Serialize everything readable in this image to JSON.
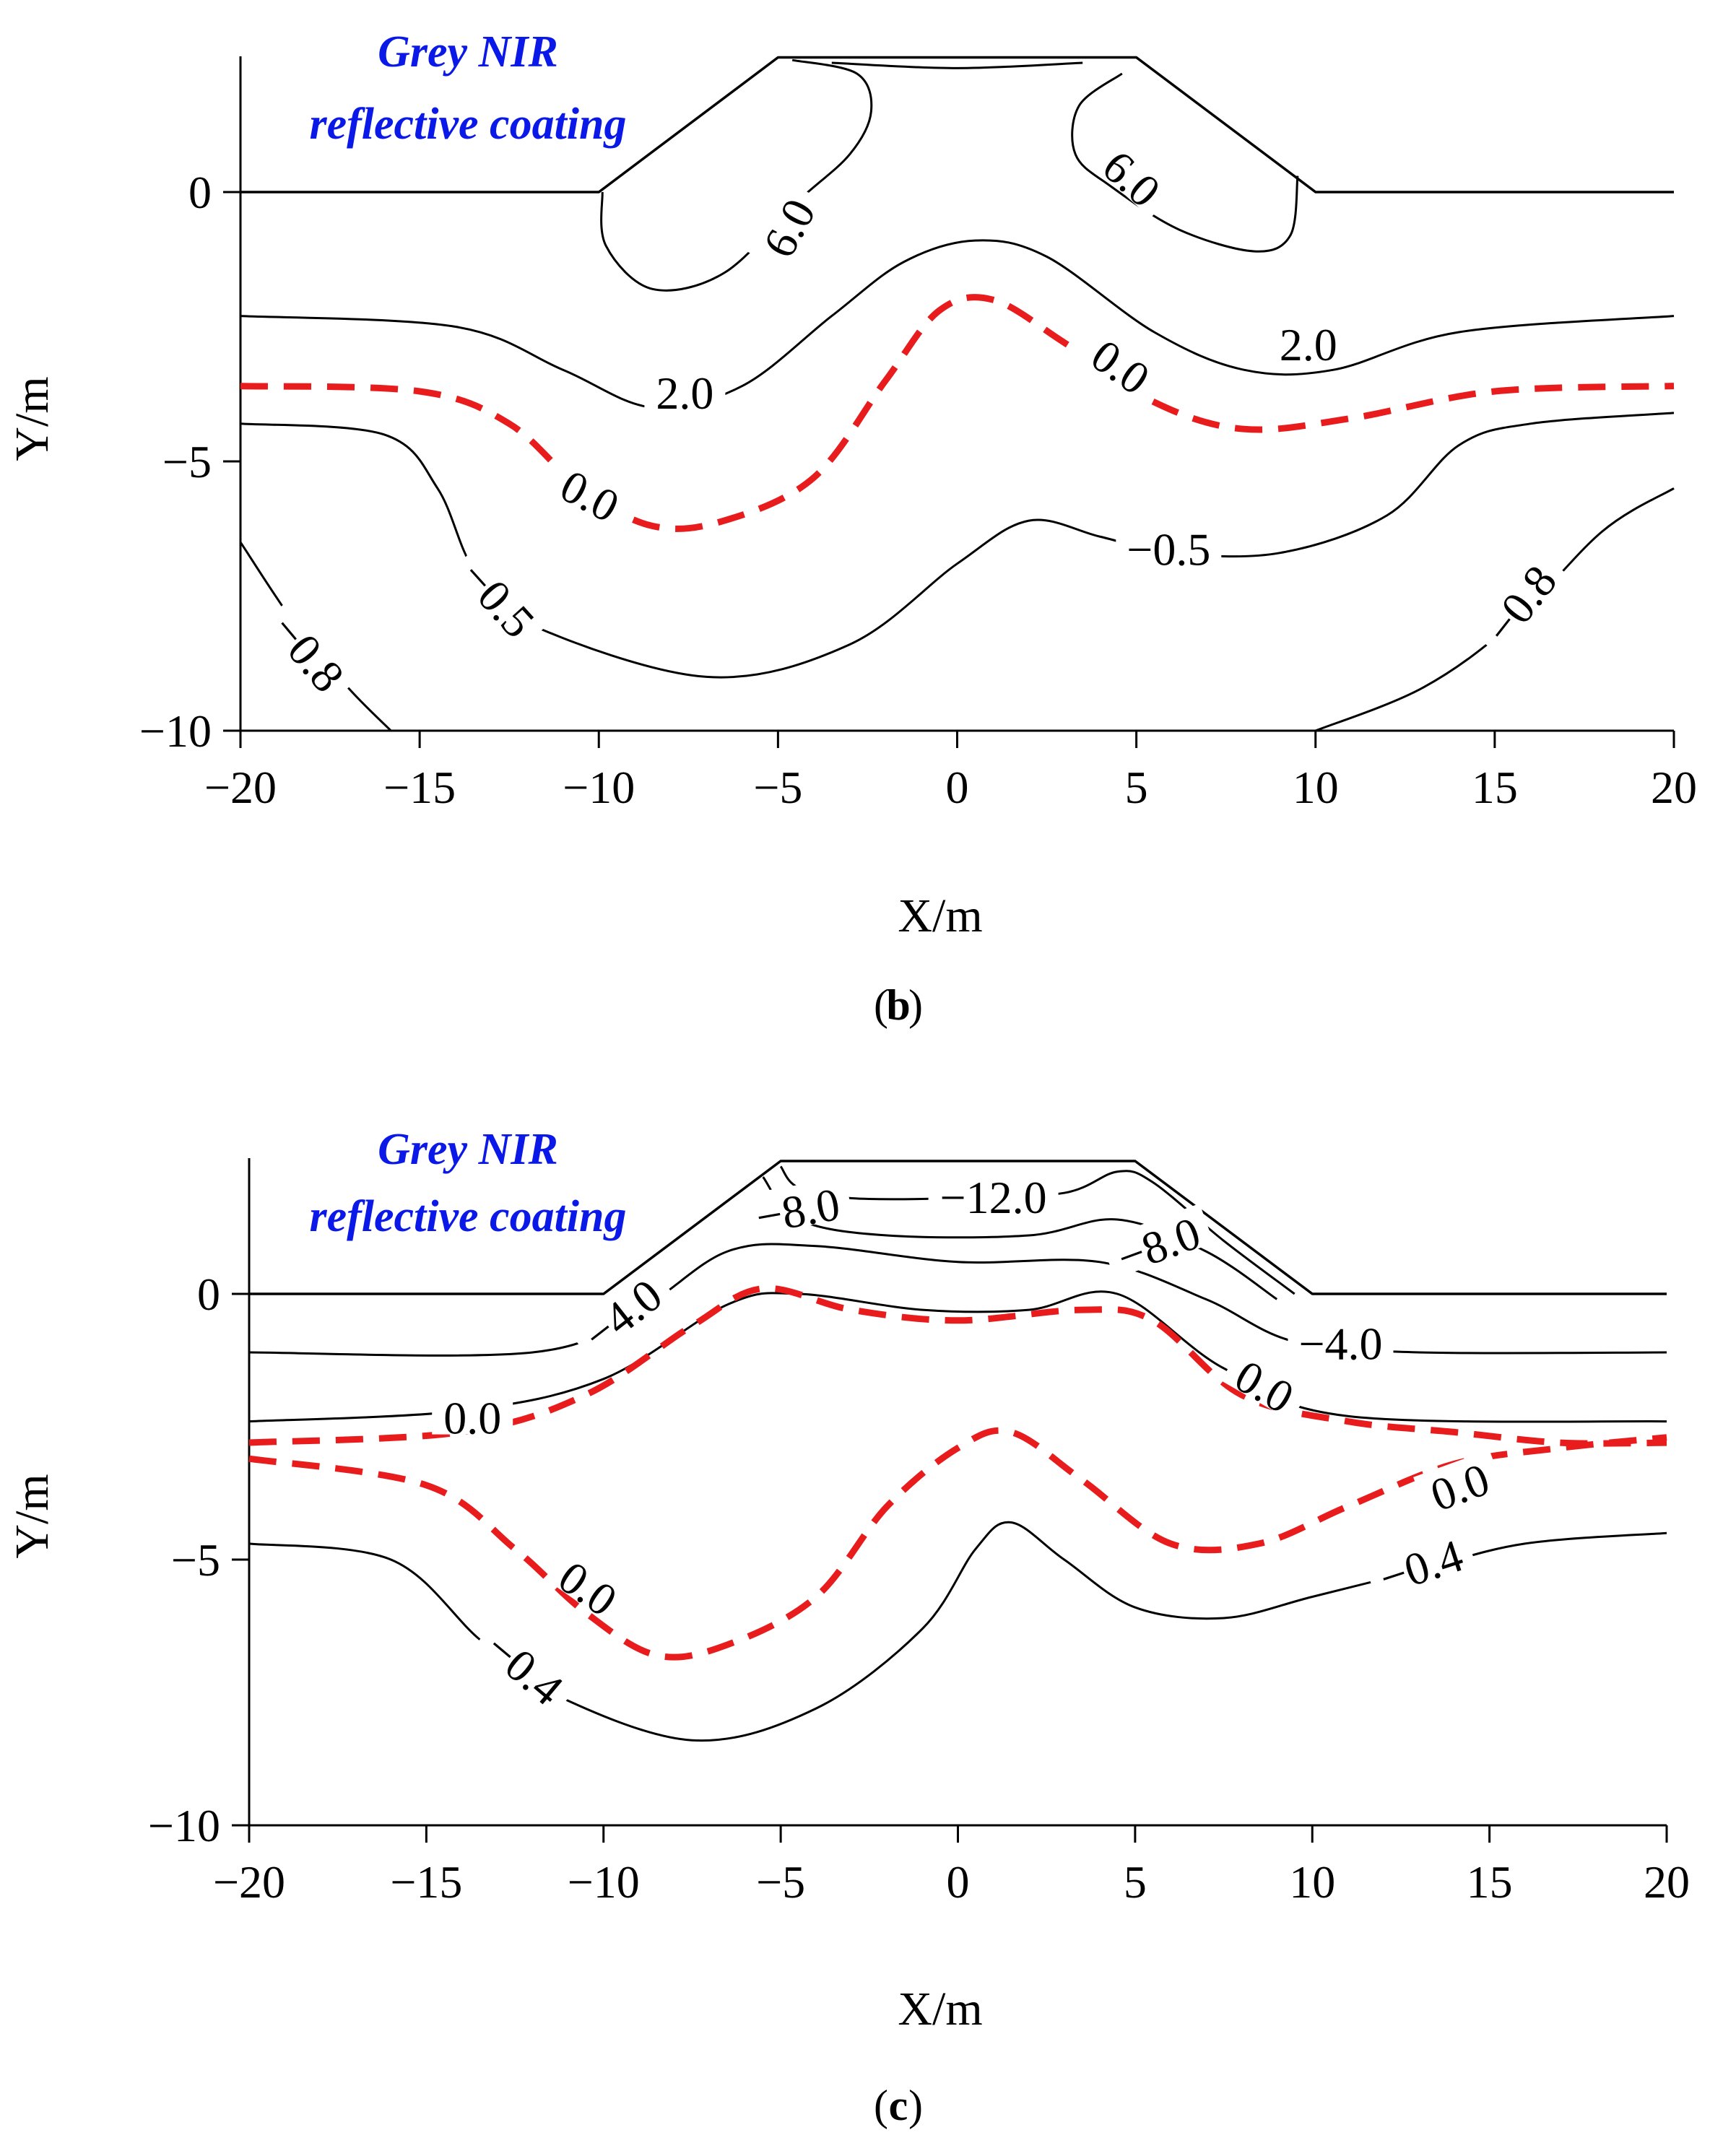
{
  "chart_data": [
    {
      "type": "contour",
      "panel_label": "b",
      "title": "",
      "annotation": [
        "Grey NIR",
        "reflective coating"
      ],
      "xlabel": "X/m",
      "ylabel": "Y/m",
      "xlim": [
        -20,
        20
      ],
      "ylim": [
        -10,
        2.6
      ],
      "xticks": [
        "−20",
        "−15",
        "−10",
        "−5",
        "0",
        "5",
        "10",
        "15",
        "20"
      ],
      "yticks": [
        "0",
        "−5",
        "−10"
      ],
      "embankment": [
        [
          -20,
          0
        ],
        [
          -10,
          0
        ],
        [
          -5,
          2.5
        ],
        [
          5,
          2.5
        ],
        [
          10,
          0
        ],
        [
          20,
          0
        ]
      ],
      "contours": [
        {
          "level": "6.0",
          "style": "solid",
          "label_at": [
            -5,
            -0.8
          ],
          "points": [
            [
              -9.9,
              0
            ],
            [
              -9.8,
              -1
            ],
            [
              -8.5,
              -1.8
            ],
            [
              -6.5,
              -1.5
            ],
            [
              -4.5,
              -0.2
            ],
            [
              -3.0,
              0.7
            ],
            [
              -2.4,
              1.5
            ],
            [
              -2.8,
              2.2
            ],
            [
              -4.6,
              2.45
            ]
          ]
        },
        {
          "level": "6.0",
          "style": "solid",
          "label_at": [
            4.8,
            0.2
          ],
          "points": [
            [
              9.5,
              0.3
            ],
            [
              9.3,
              -0.8
            ],
            [
              8.3,
              -1.1
            ],
            [
              6.2,
              -0.7
            ],
            [
              4.3,
              0.1
            ],
            [
              3.3,
              0.7
            ],
            [
              3.4,
              1.6
            ],
            [
              4.6,
              2.2
            ]
          ]
        },
        {
          "level": "6.0",
          "style": "solid",
          "label_at": null,
          "points": [
            [
              -3.5,
              2.4
            ],
            [
              0,
              2.3
            ],
            [
              3.5,
              2.4
            ]
          ]
        },
        {
          "level": "2.0",
          "style": "solid",
          "label_at": [
            -7.5,
            -3.8
          ],
          "points": [
            [
              -20,
              -2.3
            ],
            [
              -14,
              -2.5
            ],
            [
              -11,
              -3.3
            ],
            [
              -8.5,
              -4.0
            ],
            [
              -6,
              -3.6
            ],
            [
              -3.5,
              -2.3
            ],
            [
              -1.5,
              -1.3
            ],
            [
              0.5,
              -0.9
            ],
            [
              2.5,
              -1.2
            ],
            [
              5.5,
              -2.6
            ],
            [
              8,
              -3.3
            ],
            [
              10.5,
              -3.3
            ],
            [
              14,
              -2.6
            ],
            [
              20,
              -2.3
            ]
          ]
        },
        {
          "level": "0.0",
          "style": "dashed",
          "label_at": [
            -10,
            -5.6
          ],
          "points": [
            [
              -20,
              -3.6
            ],
            [
              -15,
              -3.7
            ],
            [
              -12.5,
              -4.3
            ],
            [
              -10.5,
              -5.5
            ],
            [
              -8.5,
              -6.2
            ],
            [
              -6.5,
              -6.1
            ],
            [
              -4,
              -5.3
            ],
            [
              -2,
              -3.5
            ],
            [
              -0.5,
              -2.2
            ],
            [
              1,
              -2.0
            ],
            [
              3,
              -2.8
            ],
            [
              5.5,
              -3.9
            ],
            [
              8,
              -4.4
            ],
            [
              11,
              -4.2
            ],
            [
              15,
              -3.7
            ],
            [
              20,
              -3.6
            ]
          ]
        },
        {
          "level": "0.0",
          "style": "dashed",
          "label_at": [
            4.8,
            -3.2
          ],
          "points": []
        },
        {
          "level": "-0.5",
          "style": "solid",
          "label_at": [
            -13,
            -7.6
          ],
          "points": [
            [
              -20,
              -4.3
            ],
            [
              -16,
              -4.5
            ],
            [
              -14.5,
              -5.5
            ],
            [
              -13.5,
              -7.0
            ],
            [
              -12,
              -8.0
            ],
            [
              -7,
              -9.0
            ],
            [
              -3,
              -8.4
            ],
            [
              0,
              -6.9
            ],
            [
              2,
              -6.1
            ],
            [
              4,
              -6.4
            ],
            [
              6,
              -6.7
            ],
            [
              9,
              -6.7
            ],
            [
              12,
              -6.0
            ],
            [
              14,
              -4.7
            ],
            [
              16,
              -4.3
            ],
            [
              20,
              -4.1
            ]
          ]
        },
        {
          "level": "-0.5",
          "style": "solid",
          "label_at": [
            6.3,
            -6.8
          ],
          "points": []
        },
        {
          "level": "-0.8",
          "style": "solid",
          "label_at": [
            -18.3,
            -8.5
          ],
          "points": [
            [
              -20,
              -6.5
            ],
            [
              -18.5,
              -8.0
            ],
            [
              -17,
              -9.2
            ],
            [
              -15.8,
              -10
            ]
          ]
        },
        {
          "level": "-0.8",
          "style": "solid",
          "label_at": [
            16.0,
            -7.6
          ],
          "points": [
            [
              10,
              -10
            ],
            [
              13,
              -9.2
            ],
            [
              15.5,
              -8.0
            ],
            [
              18,
              -6.3
            ],
            [
              20,
              -5.5
            ]
          ]
        }
      ],
      "contour_labels": [
        {
          "text": "6.0",
          "x": -4.6,
          "y": -0.7,
          "rotation": -62
        },
        {
          "text": "6.0",
          "x": 4.8,
          "y": 0.2,
          "rotation": 42
        },
        {
          "text": "2.0",
          "x": -7.6,
          "y": -3.8,
          "rotation": 0
        },
        {
          "text": "2.0",
          "x": 9.8,
          "y": -2.9,
          "rotation": 0
        },
        {
          "text": "0.0",
          "x": -10.3,
          "y": -5.7,
          "rotation": 28
        },
        {
          "text": "0.0",
          "x": 4.5,
          "y": -3.3,
          "rotation": 35
        },
        {
          "text": "−0.5",
          "x": -12.9,
          "y": -7.6,
          "rotation": 48
        },
        {
          "text": "−0.5",
          "x": 5.9,
          "y": -6.7,
          "rotation": 0
        },
        {
          "text": "−0.8",
          "x": -18.2,
          "y": -8.6,
          "rotation": 50
        },
        {
          "text": "−0.8",
          "x": 15.8,
          "y": -7.7,
          "rotation": -52
        }
      ]
    },
    {
      "type": "contour",
      "panel_label": "c",
      "title": "",
      "annotation": [
        "Grey NIR",
        "reflective coating"
      ],
      "xlabel": "X/m",
      "ylabel": "Y/m",
      "xlim": [
        -20,
        20
      ],
      "ylim": [
        -10,
        2.6
      ],
      "xticks": [
        "−20",
        "−15",
        "−10",
        "−5",
        "0",
        "5",
        "10",
        "15",
        "20"
      ],
      "yticks": [
        "0",
        "−5",
        "−10"
      ],
      "embankment": [
        [
          -20,
          0
        ],
        [
          -10,
          0
        ],
        [
          -5,
          2.5
        ],
        [
          5,
          2.5
        ],
        [
          10,
          0
        ],
        [
          20,
          0
        ]
      ],
      "contours": [
        {
          "level": "-12.0",
          "style": "solid",
          "label_at": [
            1,
            1.7
          ],
          "points": [
            [
              -5,
              2.4
            ],
            [
              -4.5,
              2.0
            ],
            [
              -3,
              1.8
            ],
            [
              0,
              1.8
            ],
            [
              3,
              1.9
            ],
            [
              4.5,
              2.3
            ],
            [
              5.5,
              2.1
            ],
            [
              7.5,
              1.0
            ],
            [
              9.5,
              0
            ]
          ]
        },
        {
          "level": "-8.0",
          "style": "solid",
          "label_at": [
            -4.7,
            1.5
          ],
          "points": [
            [
              -5.5,
              2.2
            ],
            [
              -4.5,
              1.4
            ],
            [
              -2,
              1.1
            ],
            [
              2,
              1.1
            ],
            [
              4.5,
              1.4
            ],
            [
              7,
              0.8
            ],
            [
              9,
              -0.1
            ]
          ]
        },
        {
          "level": "-4.0",
          "style": "solid",
          "label_at": [
            -9.2,
            -0.4
          ],
          "points": [
            [
              -20,
              -1.1
            ],
            [
              -12,
              -1.1
            ],
            [
              -9,
              -0.3
            ],
            [
              -6.5,
              0.8
            ],
            [
              -4,
              0.9
            ],
            [
              0,
              0.6
            ],
            [
              4,
              0.6
            ],
            [
              7,
              -0.1
            ],
            [
              9.5,
              -0.9
            ],
            [
              13,
              -1.1
            ],
            [
              20,
              -1.1
            ]
          ]
        },
        {
          "level": "0.0",
          "style": "solid",
          "label_at": [
            -14,
            -2.3
          ],
          "points": [
            [
              -20,
              -2.4
            ],
            [
              -14,
              -2.2
            ],
            [
              -10,
              -1.6
            ],
            [
              -6.5,
              -0.2
            ],
            [
              -4.5,
              0.0
            ],
            [
              -1,
              -0.3
            ],
            [
              2,
              -0.3
            ],
            [
              4.5,
              0.0
            ],
            [
              7.5,
              -1.4
            ],
            [
              11,
              -2.3
            ],
            [
              20,
              -2.4
            ]
          ]
        },
        {
          "level": "0.0",
          "style": "dashed",
          "label_at": null,
          "points": [
            [
              -20,
              -2.8
            ],
            [
              -14,
              -2.6
            ],
            [
              -10.5,
              -1.9
            ],
            [
              -7.5,
              -0.6
            ],
            [
              -5.5,
              0.1
            ],
            [
              -3,
              -0.3
            ],
            [
              0,
              -0.5
            ],
            [
              3.5,
              -0.3
            ],
            [
              5.5,
              -0.5
            ],
            [
              8,
              -1.9
            ],
            [
              11,
              -2.4
            ],
            [
              14,
              -2.6
            ],
            [
              17,
              -2.8
            ],
            [
              20,
              -2.8
            ]
          ]
        },
        {
          "level": "0.0",
          "style": "dashed",
          "label_at": [
            -10.5,
            -5.6
          ],
          "points": [
            [
              -20,
              -3.1
            ],
            [
              -15,
              -3.6
            ],
            [
              -12.5,
              -4.8
            ],
            [
              -10.5,
              -6.0
            ],
            [
              -8.5,
              -6.8
            ],
            [
              -6.5,
              -6.6
            ],
            [
              -4,
              -5.7
            ],
            [
              -2,
              -4.0
            ],
            [
              0,
              -2.9
            ],
            [
              1.5,
              -2.6
            ],
            [
              3.5,
              -3.5
            ],
            [
              6,
              -4.7
            ],
            [
              8.5,
              -4.7
            ],
            [
              11,
              -4.0
            ],
            [
              14,
              -3.2
            ],
            [
              17,
              -2.9
            ],
            [
              20,
              -2.7
            ]
          ]
        },
        {
          "level": "-0.4",
          "style": "solid",
          "label_at": [
            -12.2,
            -7.0
          ],
          "points": [
            [
              -20,
              -4.7
            ],
            [
              -16,
              -5.0
            ],
            [
              -13.5,
              -6.5
            ],
            [
              -11.5,
              -7.5
            ],
            [
              -7.5,
              -8.4
            ],
            [
              -4,
              -7.8
            ],
            [
              -1,
              -6.3
            ],
            [
              0.5,
              -4.8
            ],
            [
              1.5,
              -4.3
            ],
            [
              3,
              -5.0
            ],
            [
              5,
              -5.9
            ],
            [
              7.5,
              -6.1
            ],
            [
              10,
              -5.7
            ],
            [
              13,
              -5.2
            ],
            [
              16,
              -4.7
            ],
            [
              20,
              -4.5
            ]
          ]
        }
      ],
      "contour_labels": [
        {
          "text": "−12.0",
          "x": 1.0,
          "y": 1.75,
          "rotation": 0
        },
        {
          "text": "−8.0",
          "x": -4.5,
          "y": 1.5,
          "rotation": -10
        },
        {
          "text": "−8.0",
          "x": 5.7,
          "y": 0.85,
          "rotation": -20
        },
        {
          "text": "−4.0",
          "x": -9.4,
          "y": -0.45,
          "rotation": -38
        },
        {
          "text": "−4.0",
          "x": 10.8,
          "y": -1.0,
          "rotation": 0
        },
        {
          "text": "0.0",
          "x": -13.7,
          "y": -2.4,
          "rotation": 0
        },
        {
          "text": "0.0",
          "x": 8.6,
          "y": -1.8,
          "rotation": 30
        },
        {
          "text": "0.0",
          "x": 14.2,
          "y": -3.7,
          "rotation": -20
        },
        {
          "text": "0.0",
          "x": -10.5,
          "y": -5.6,
          "rotation": 35
        },
        {
          "text": "−0.4",
          "x": -12.3,
          "y": -7.1,
          "rotation": 40
        },
        {
          "text": "−0.4",
          "x": 13.1,
          "y": -5.2,
          "rotation": -18
        }
      ]
    }
  ]
}
